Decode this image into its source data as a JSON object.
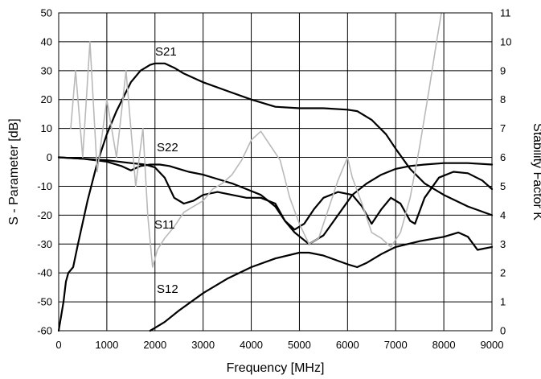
{
  "chart_data": {
    "type": "line",
    "xlabel": "Frequency [MHz]",
    "ylabel": "S - Parameter  [dB]",
    "y2label": "Stability Factor K",
    "xlim": [
      0,
      9000
    ],
    "ylim": [
      -60,
      50
    ],
    "y2lim": [
      0,
      11
    ],
    "xticks": [
      0,
      1000,
      2000,
      3000,
      4000,
      5000,
      6000,
      7000,
      8000,
      9000
    ],
    "yticks": [
      -60,
      -50,
      -40,
      -30,
      -20,
      -10,
      0,
      10,
      20,
      30,
      40,
      50
    ],
    "y2ticks": [
      0,
      1,
      2,
      3,
      4,
      5,
      6,
      7,
      8,
      9,
      10,
      11
    ],
    "grid": true,
    "series": [
      {
        "name": "S21",
        "color": "#000000",
        "axis": "left",
        "x": [
          0,
          100,
          150,
          200,
          300,
          400,
          600,
          800,
          1000,
          1200,
          1500,
          1700,
          1800,
          1900,
          2000,
          2200,
          2400,
          2600,
          3000,
          3500,
          4000,
          4500,
          5000,
          5500,
          6000,
          6200,
          6500,
          6800,
          7000,
          7300,
          7600,
          8000,
          8500,
          9000
        ],
        "y": [
          -60,
          -50,
          -43,
          -40,
          -38,
          -30,
          -15,
          -2,
          8,
          16,
          26,
          30,
          31,
          32,
          32.5,
          32.5,
          31,
          29,
          26,
          23,
          20,
          17.5,
          17,
          17,
          16.5,
          16,
          13,
          8,
          3,
          -4,
          -9,
          -13,
          -17,
          -20
        ]
      },
      {
        "name": "S22",
        "color": "#000000",
        "axis": "left",
        "x": [
          0,
          500,
          1000,
          1300,
          1500,
          1700,
          1900,
          2100,
          2300,
          2500,
          2700,
          3000,
          3300,
          3600,
          3900,
          4200,
          4500,
          4700,
          4900,
          5200,
          5500,
          5800,
          6100,
          6400,
          6700,
          7000,
          7300,
          7600,
          8000,
          8500,
          9000
        ],
        "y": [
          0,
          -0.5,
          -1.5,
          -3,
          -4.5,
          -3,
          -2.5,
          -2.5,
          -3,
          -4,
          -5,
          -6,
          -7.5,
          -9,
          -11,
          -13,
          -17,
          -22,
          -26,
          -30,
          -27,
          -20,
          -13,
          -9,
          -6,
          -4,
          -3,
          -2.5,
          -2,
          -2,
          -2.5
        ]
      },
      {
        "name": "S11",
        "color": "#000000",
        "axis": "left",
        "x": [
          0,
          500,
          1000,
          1500,
          1800,
          2000,
          2200,
          2400,
          2600,
          2800,
          3000,
          3300,
          3600,
          3900,
          4200,
          4500,
          4700,
          4900,
          5100,
          5300,
          5500,
          5800,
          6100,
          6300,
          6500,
          6700,
          6900,
          7100,
          7300,
          7400,
          7600,
          7900,
          8200,
          8500,
          8800,
          9000
        ],
        "y": [
          0,
          -0.5,
          -1,
          -2,
          -2.5,
          -3.5,
          -7,
          -14,
          -16,
          -15,
          -13,
          -12,
          -13,
          -14,
          -14,
          -16,
          -22,
          -25,
          -23,
          -18,
          -14,
          -12,
          -13,
          -17,
          -23,
          -18,
          -14,
          -16,
          -22,
          -23,
          -14,
          -7,
          -5,
          -5.5,
          -8,
          -11
        ]
      },
      {
        "name": "S12",
        "color": "#000000",
        "axis": "left",
        "x": [
          1900,
          2000,
          2200,
          2500,
          3000,
          3500,
          4000,
          4500,
          5000,
          5200,
          5500,
          6000,
          6200,
          6400,
          6700,
          7000,
          7500,
          8000,
          8300,
          8500,
          8700,
          9000
        ],
        "y": [
          -60,
          -59,
          -57,
          -53,
          -47,
          -42,
          -38,
          -35,
          -33,
          -33,
          -34,
          -37,
          -38,
          -36.5,
          -33.5,
          -31,
          -29,
          -27.5,
          -26,
          -27.5,
          -32,
          -31
        ]
      },
      {
        "name": "Stability Factor K",
        "color": "#b9b9b9",
        "axis": "right",
        "x": [
          250,
          350,
          500,
          650,
          800,
          1000,
          1200,
          1400,
          1600,
          1750,
          1850,
          1950,
          2050,
          2200,
          2400,
          2600,
          2800,
          3000,
          3200,
          3400,
          3600,
          3800,
          4000,
          4200,
          4400,
          4600,
          4800,
          5000,
          5200,
          5400,
          5600,
          5800,
          6000,
          6100,
          6300,
          6500,
          6700,
          6900,
          7100,
          7300,
          7500,
          7700,
          7850,
          7950
        ],
        "y": [
          7,
          9,
          6,
          10,
          5.5,
          8,
          6,
          9,
          5,
          7,
          4,
          2.2,
          2.8,
          3.2,
          3.6,
          4.1,
          4.3,
          4.5,
          4.9,
          5.1,
          5.4,
          5.9,
          6.6,
          6.9,
          6.4,
          5.9,
          4.6,
          3.7,
          3.0,
          3.2,
          4.2,
          5.2,
          6.0,
          5.3,
          4.4,
          3.4,
          3.2,
          2.9,
          3.4,
          4.6,
          6.4,
          8.4,
          10.0,
          11.0
        ]
      }
    ],
    "annotations": [
      "S21",
      "S22",
      "S11",
      "S12"
    ]
  }
}
